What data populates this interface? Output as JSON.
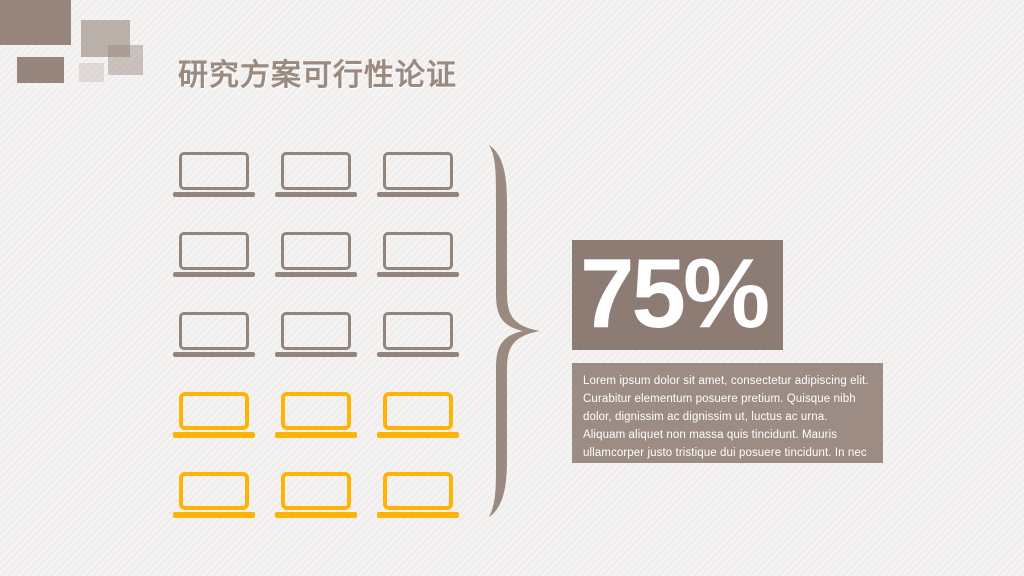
{
  "slide": {
    "title": "研究方案可行性论证",
    "stat_value": "75%",
    "description": "Lorem ipsum dolor sit amet, consectetur adipiscing elit. Curabitur elementum posuere pretium. Quisque nibh dolor, dignissim ac dignissim ut, luctus ac urna. Aliquam aliquet non massa quis tincidunt. Mauris ullamcorper justo tristique dui posuere tincidunt. In nec lacus laoreet orci varius imperdiet sit amet in augue."
  },
  "laptop_grid": {
    "rows": 5,
    "cols": 3,
    "total_icons": 15,
    "row_colors": [
      "brown",
      "brown",
      "brown",
      "yellow",
      "yellow"
    ],
    "icon": "laptop"
  },
  "colors": {
    "brown": "#94857c",
    "yellow": "#ffb405",
    "title": "#9a8a80",
    "brace": "#9a8a80",
    "stat_box_bg": "#8c7c73",
    "desc_box_bg": "#9c8c83",
    "stat_text": "#ffffff",
    "desc_text": "#ffffff"
  }
}
